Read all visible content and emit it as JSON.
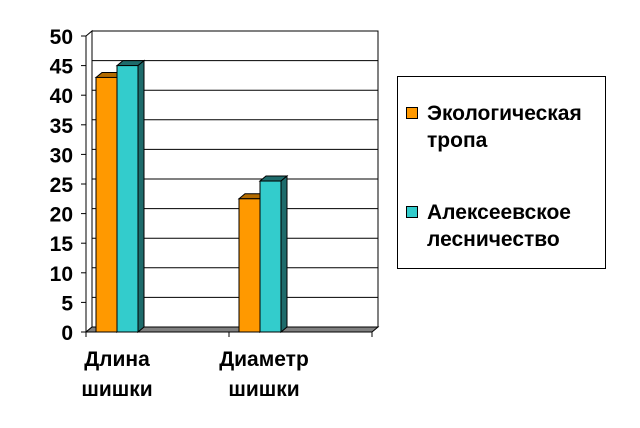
{
  "chart_data": {
    "type": "bar",
    "categories": [
      "Длина\nшишки",
      "Диаметр\nшишки"
    ],
    "series": [
      {
        "name": "Экологическая\nтропа",
        "values": [
          43,
          22.5
        ],
        "color": "#FF9900",
        "side_color": "#B36B00"
      },
      {
        "name": "Алексеевское\nлесничество",
        "values": [
          45,
          25.5
        ],
        "color": "#33CCCC",
        "side_color": "#1E6B6B"
      }
    ],
    "ylim": [
      0,
      50
    ],
    "yticks": [
      "0",
      "5",
      "10",
      "15",
      "20",
      "25",
      "30",
      "35",
      "40",
      "45",
      "50"
    ],
    "grid": true,
    "legend": "right",
    "title": "",
    "xlabel": "",
    "ylabel": ""
  }
}
